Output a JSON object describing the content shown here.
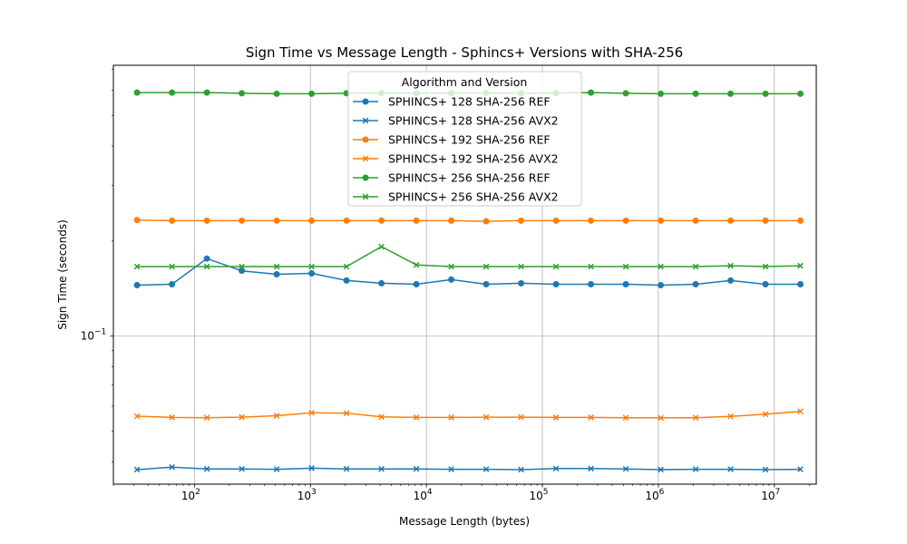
{
  "chart_data": {
    "type": "line",
    "title": "Sign Time vs Message Length - Sphincs+ Versions with SHA-256",
    "xlabel": "Message Length (bytes)",
    "ylabel": "Sign Time (seconds)",
    "xscale": "log",
    "yscale": "log",
    "xlim": [
      20,
      23000000
    ],
    "ylim": [
      0.034,
      0.72
    ],
    "x_tick_labels": [
      {
        "value": 100,
        "label": "10",
        "exp": "2"
      },
      {
        "value": 1000,
        "label": "10",
        "exp": "3"
      },
      {
        "value": 10000,
        "label": "10",
        "exp": "4"
      },
      {
        "value": 100000,
        "label": "10",
        "exp": "5"
      },
      {
        "value": 1000000,
        "label": "10",
        "exp": "6"
      },
      {
        "value": 10000000,
        "label": "10",
        "exp": "7"
      }
    ],
    "y_tick_labels": [
      {
        "value": 0.1,
        "label": "10",
        "exp": "−1"
      }
    ],
    "grid": true,
    "legend": {
      "title": "Algorithm and Version",
      "placement": "top-center"
    },
    "x": [
      32,
      64,
      128,
      256,
      512,
      1024,
      2048,
      4096,
      8192,
      16384,
      32768,
      65536,
      131072,
      262144,
      524288,
      1048576,
      2097152,
      4194304,
      8388608,
      16777216
    ],
    "series": [
      {
        "name": "SPHINCS+ 128 SHA-256 REF",
        "color": "#1f77b4",
        "marker": "circle",
        "values": [
          0.145,
          0.146,
          0.176,
          0.161,
          0.157,
          0.158,
          0.15,
          0.147,
          0.146,
          0.151,
          0.146,
          0.147,
          0.146,
          0.146,
          0.146,
          0.145,
          0.146,
          0.15,
          0.146,
          0.146
        ]
      },
      {
        "name": "SPHINCS+ 128 SHA-256 AVX2",
        "color": "#1f77b4",
        "marker": "x",
        "values": [
          0.0378,
          0.0385,
          0.038,
          0.038,
          0.0379,
          0.0382,
          0.038,
          0.038,
          0.038,
          0.0379,
          0.0379,
          0.0378,
          0.0381,
          0.0381,
          0.038,
          0.0378,
          0.0379,
          0.0379,
          0.0378,
          0.0379
        ]
      },
      {
        "name": "SPHINCS+ 192 SHA-256 REF",
        "color": "#ff7f0e",
        "marker": "circle",
        "values": [
          0.233,
          0.232,
          0.232,
          0.232,
          0.232,
          0.232,
          0.232,
          0.232,
          0.232,
          0.232,
          0.231,
          0.232,
          0.232,
          0.232,
          0.232,
          0.232,
          0.232,
          0.232,
          0.232,
          0.232
        ]
      },
      {
        "name": "SPHINCS+ 192 SHA-256 AVX2",
        "color": "#ff7f0e",
        "marker": "x",
        "values": [
          0.0558,
          0.0553,
          0.0552,
          0.0554,
          0.056,
          0.0572,
          0.057,
          0.0555,
          0.0553,
          0.0553,
          0.0554,
          0.0554,
          0.0553,
          0.0553,
          0.0552,
          0.0551,
          0.0552,
          0.0557,
          0.0566,
          0.0578
        ]
      },
      {
        "name": "SPHINCS+ 256 SHA-256 REF",
        "color": "#2ca02c",
        "marker": "circle",
        "values": [
          0.59,
          0.59,
          0.59,
          0.587,
          0.585,
          0.585,
          0.587,
          0.588,
          0.587,
          0.588,
          0.588,
          0.587,
          0.588,
          0.59,
          0.587,
          0.585,
          0.585,
          0.585,
          0.585,
          0.585
        ]
      },
      {
        "name": "SPHINCS+ 256 SHA-256 AVX2",
        "color": "#2ca02c",
        "marker": "x",
        "values": [
          0.166,
          0.166,
          0.166,
          0.166,
          0.166,
          0.166,
          0.166,
          0.192,
          0.168,
          0.166,
          0.166,
          0.166,
          0.166,
          0.166,
          0.166,
          0.166,
          0.166,
          0.167,
          0.166,
          0.167
        ]
      }
    ]
  }
}
